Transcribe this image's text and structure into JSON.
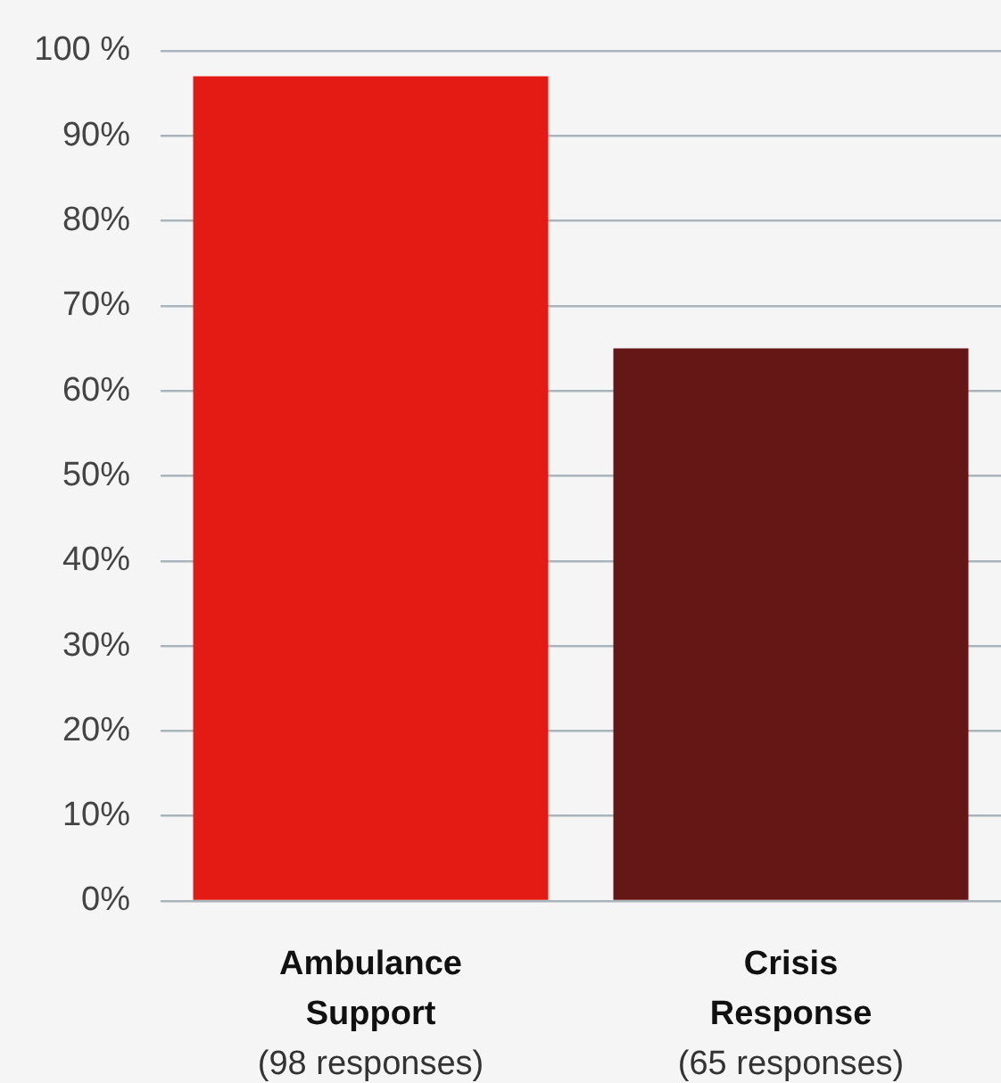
{
  "chart_data": {
    "type": "bar",
    "categories": [
      "Ambulance Support (98 responses)",
      "Crisis Response (65 responses)"
    ],
    "values": [
      97,
      65
    ],
    "colors": [
      "#e31b14",
      "#641715"
    ],
    "ylim": [
      0,
      100
    ],
    "yticks": [
      {
        "value": 0,
        "label": "0%"
      },
      {
        "value": 10,
        "label": "10%"
      },
      {
        "value": 20,
        "label": "20%"
      },
      {
        "value": 30,
        "label": "30%"
      },
      {
        "value": 40,
        "label": "40%"
      },
      {
        "value": 50,
        "label": "50%"
      },
      {
        "value": 60,
        "label": "60%"
      },
      {
        "value": 70,
        "label": "70%"
      },
      {
        "value": 80,
        "label": "80%"
      },
      {
        "value": 90,
        "label": "90%"
      },
      {
        "value": 100,
        "label": "100 %"
      }
    ],
    "grid": "y",
    "legend": false
  }
}
